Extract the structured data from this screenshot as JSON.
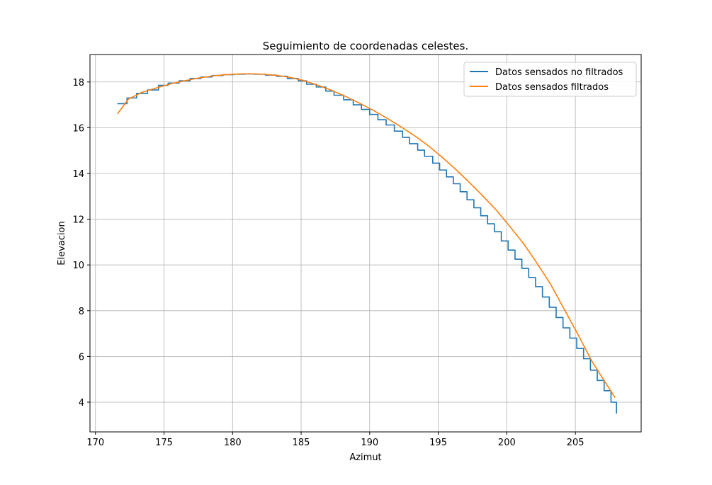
{
  "chart_data": {
    "type": "line",
    "title": "Seguimiento de coordenadas celestes.",
    "xlabel": "Azimut",
    "ylabel": "Elevacion",
    "xlim": [
      169.6,
      209.8
    ],
    "ylim": [
      2.7,
      19.2
    ],
    "xticks": [
      170,
      175,
      180,
      185,
      190,
      195,
      200,
      205
    ],
    "yticks": [
      4,
      6,
      8,
      10,
      12,
      14,
      16,
      18
    ],
    "grid": true,
    "legend_position": "top-right",
    "series": [
      {
        "name": "Datos sensados no filtrados",
        "color": "#1f77b4",
        "style": "steps",
        "x": [
          171.6,
          172.3,
          173.0,
          173.8,
          174.6,
          175.3,
          176.1,
          176.9,
          177.7,
          178.5,
          179.3,
          180.1,
          180.9,
          181.6,
          182.4,
          183.2,
          184.0,
          184.8,
          185.4,
          186.1,
          186.8,
          187.4,
          188.1,
          188.8,
          189.4,
          190.0,
          190.6,
          191.2,
          191.8,
          192.4,
          192.9,
          193.5,
          194.0,
          194.6,
          195.1,
          195.6,
          196.1,
          196.6,
          197.1,
          197.6,
          198.1,
          198.6,
          199.1,
          199.6,
          200.1,
          200.6,
          201.1,
          201.6,
          202.1,
          202.6,
          203.1,
          203.6,
          204.1,
          204.6,
          205.1,
          205.6,
          206.1,
          206.6,
          207.1,
          207.6,
          208.0
        ],
        "y": [
          17.05,
          17.3,
          17.5,
          17.65,
          17.85,
          17.95,
          18.05,
          18.15,
          18.22,
          18.28,
          18.32,
          18.34,
          18.35,
          18.34,
          18.3,
          18.25,
          18.15,
          18.05,
          17.9,
          17.78,
          17.6,
          17.42,
          17.22,
          17.0,
          16.8,
          16.58,
          16.35,
          16.12,
          15.85,
          15.58,
          15.3,
          15.02,
          14.75,
          14.45,
          14.15,
          13.85,
          13.55,
          13.2,
          12.85,
          12.5,
          12.15,
          11.8,
          11.45,
          11.05,
          10.65,
          10.25,
          9.85,
          9.45,
          9.05,
          8.6,
          8.15,
          7.7,
          7.25,
          6.8,
          6.35,
          5.9,
          5.4,
          4.95,
          4.5,
          4.0,
          3.5
        ]
      },
      {
        "name": "Datos sensados filtrados",
        "color": "#ff7f0e",
        "style": "line",
        "x": [
          171.6,
          172.4,
          173.4,
          174.5,
          175.5,
          176.5,
          177.5,
          178.5,
          179.5,
          180.5,
          181.3,
          182.2,
          183.2,
          184.2,
          185.2,
          186.2,
          187.2,
          188.2,
          189.2,
          190.2,
          191.2,
          192.2,
          193.2,
          194.2,
          195.2,
          196.2,
          197.2,
          198.2,
          199.2,
          200.2,
          201.2,
          202.2,
          203.2,
          204.2,
          205.2,
          206.2,
          207.2,
          207.9
        ],
        "y": [
          16.6,
          17.25,
          17.55,
          17.75,
          17.92,
          18.05,
          18.17,
          18.26,
          18.32,
          18.35,
          18.36,
          18.34,
          18.29,
          18.2,
          18.06,
          17.86,
          17.64,
          17.38,
          17.09,
          16.78,
          16.44,
          16.07,
          15.68,
          15.25,
          14.75,
          14.22,
          13.65,
          13.05,
          12.42,
          11.7,
          10.95,
          10.08,
          9.15,
          8.05,
          6.95,
          5.8,
          4.85,
          4.2
        ]
      }
    ]
  }
}
